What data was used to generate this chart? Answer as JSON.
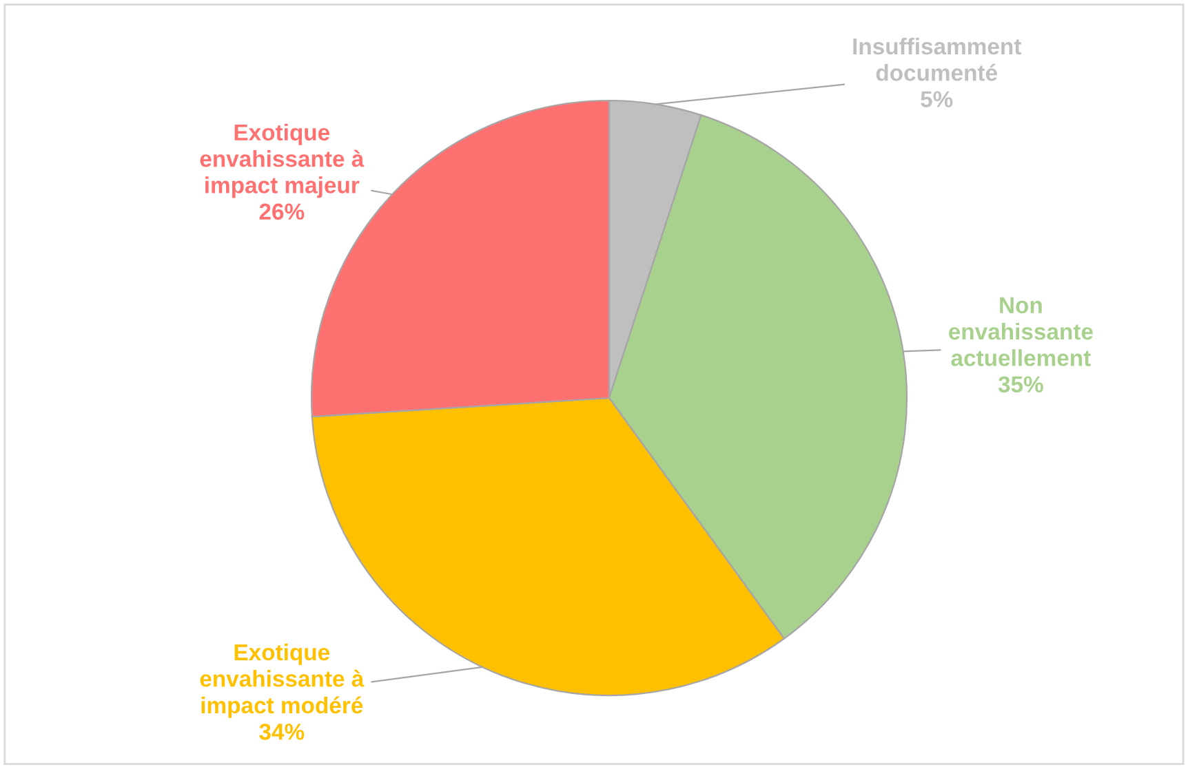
{
  "chart_data": {
    "type": "pie",
    "categories": [
      "Insuffisamment\ndocumenté",
      "Non\nenvahissante\nactuellement",
      "Exotique\nenvahissante à\nimpact modéré",
      "Exotique\nenvahissante à\nimpact majeur"
    ],
    "values": [
      5,
      35,
      34,
      26
    ],
    "value_labels": [
      "5%",
      "35%",
      "34%",
      "26%"
    ],
    "colors": [
      "#bfbfbf",
      "#a9d18e",
      "#ffc000",
      "#ff7171"
    ],
    "legend": false
  }
}
